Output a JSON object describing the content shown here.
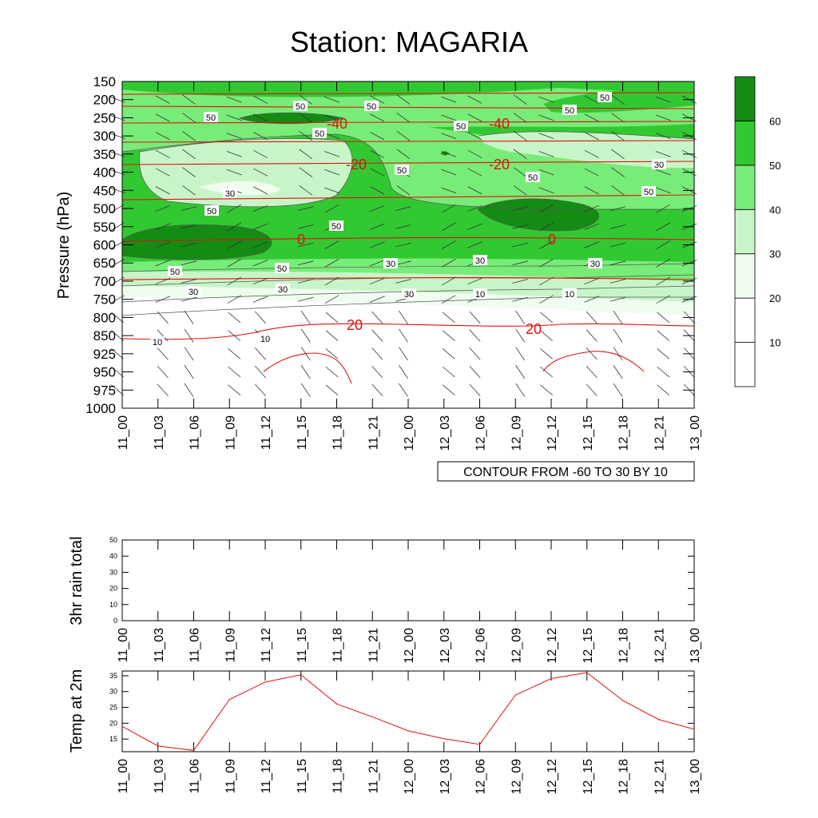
{
  "title": "Station: MAGARIA",
  "time_labels": [
    "11_00",
    "11_03",
    "11_06",
    "11_09",
    "11_12",
    "11_15",
    "11_18",
    "11_21",
    "12_00",
    "12_03",
    "12_06",
    "12_09",
    "12_12",
    "12_15",
    "12_18",
    "12_21",
    "13_00"
  ],
  "chart_data": [
    {
      "type": "heatmap",
      "name": "cross-section",
      "ylabel": "Pressure (hPa)",
      "xlabel": "",
      "pressure_levels": [
        150,
        200,
        250,
        300,
        350,
        400,
        450,
        500,
        550,
        600,
        650,
        700,
        750,
        800,
        850,
        925,
        950,
        975,
        1000
      ],
      "fill_variable": "relative humidity",
      "colorbar_levels": [
        "10",
        "20",
        "30",
        "40",
        "50",
        "60"
      ],
      "colorbar_colors": [
        "#ffffff",
        "#f0fcf0",
        "#c8f5c8",
        "#78ec78",
        "#32c832",
        "#148c14"
      ],
      "contour_note": "CONTOUR FROM -60 TO 30 BY 10",
      "temperature_contour_labels": [
        "-40",
        "-40",
        "-20",
        "-20",
        "0",
        "0",
        "20",
        "20"
      ],
      "humidity_contour_labels": [
        "50",
        "50",
        "50",
        "50",
        "50",
        "50",
        "50",
        "50",
        "50",
        "50",
        "50",
        "50",
        "50",
        "50",
        "30",
        "30",
        "30",
        "30",
        "30",
        "30",
        "30",
        "30",
        "10",
        "10",
        "10",
        "10"
      ]
    },
    {
      "type": "line",
      "name": "rain",
      "ylabel": "3hr rain total",
      "ylim": [
        0,
        50
      ],
      "yticks": [
        "0",
        "10",
        "20",
        "30",
        "40",
        "50"
      ],
      "values": [
        0,
        0,
        0,
        0,
        0,
        0,
        0,
        0,
        0,
        0,
        0,
        0,
        0,
        0,
        0,
        0,
        0
      ]
    },
    {
      "type": "line",
      "name": "temp",
      "ylabel": "Temp at 2m",
      "ylim": [
        11,
        36.5
      ],
      "yticks": [
        "15",
        "20",
        "25",
        "30",
        "35"
      ],
      "values": [
        19,
        12.8,
        11.4,
        27.5,
        33,
        35.3,
        26.1,
        22,
        17.6,
        15.1,
        13.3,
        28.9,
        34.1,
        36,
        27.2,
        21.2,
        18.1
      ]
    }
  ]
}
